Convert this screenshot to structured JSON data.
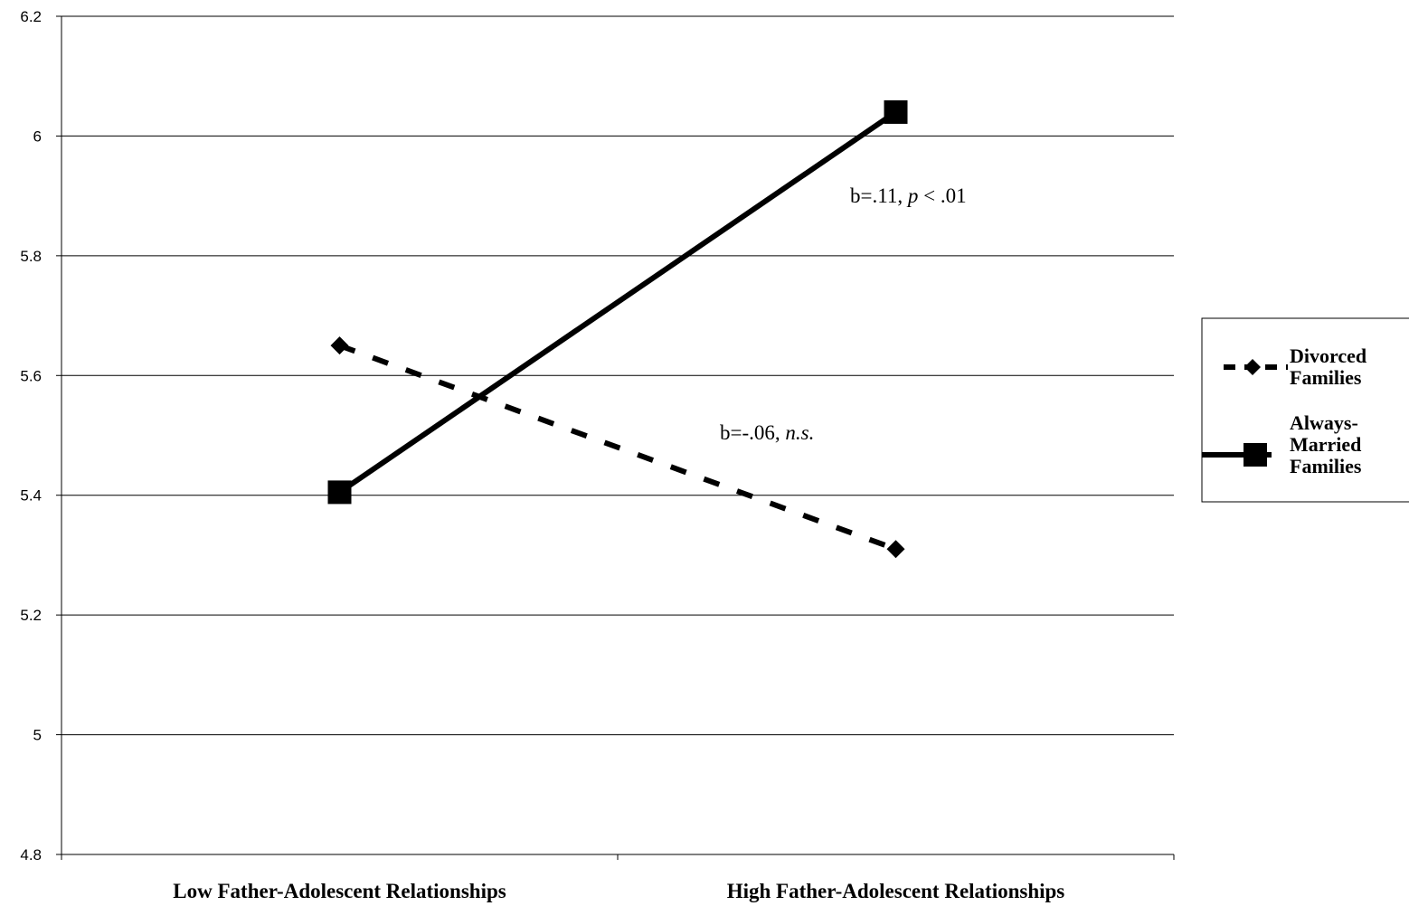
{
  "chart_data": {
    "type": "line",
    "categories": [
      "Low Father-Adolescent Relationships",
      "High Father-Adolescent Relationships"
    ],
    "series": [
      {
        "name": "Divorced Families",
        "values": [
          5.65,
          5.31
        ],
        "style": "dashed",
        "marker": "diamond",
        "color": "#000000"
      },
      {
        "name": "Always-Married Families",
        "values": [
          5.405,
          6.04
        ],
        "style": "solid",
        "marker": "square",
        "color": "#000000"
      }
    ],
    "ylim": [
      4.8,
      6.2
    ],
    "yticks": [
      "4.8",
      "5",
      "5.2",
      "5.4",
      "5.6",
      "5.8",
      "6",
      "6.2"
    ],
    "grid": true,
    "legend": "right",
    "legend_entries": [
      {
        "lines": [
          "Divorced",
          "Families"
        ]
      },
      {
        "lines": [
          "Always-",
          "Married",
          "Families"
        ]
      }
    ],
    "annotations": [
      {
        "prefix": "b=.11, ",
        "italic": "p",
        "suffix": " < .01"
      },
      {
        "prefix": "b=-.06, ",
        "italic": "n.s.",
        "suffix": ""
      }
    ]
  }
}
